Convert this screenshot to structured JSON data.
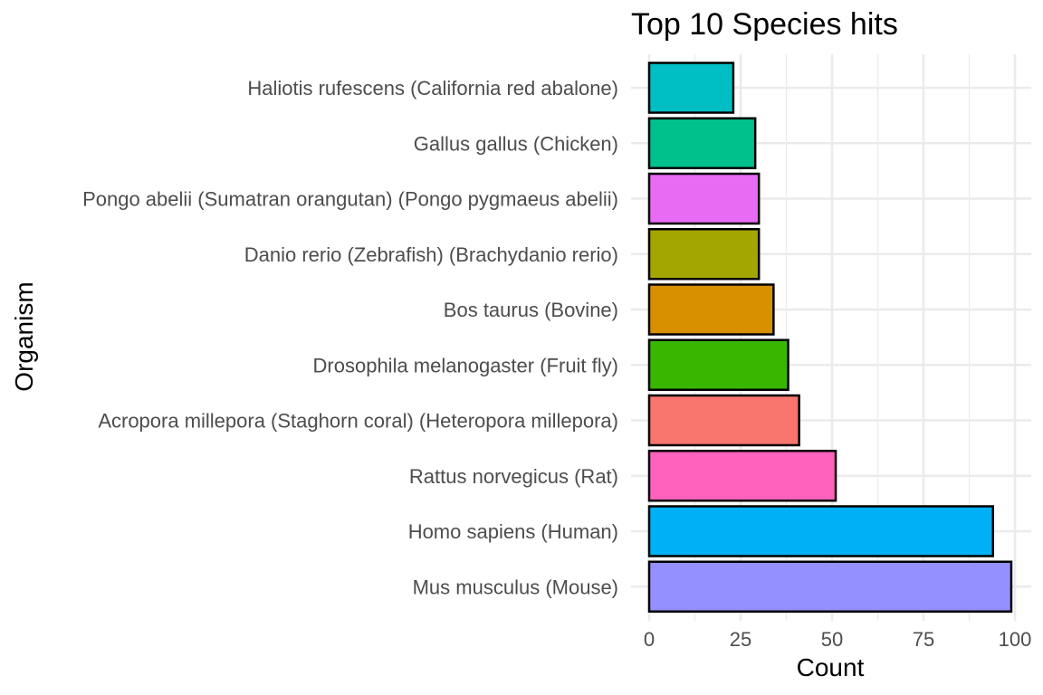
{
  "chart_data": {
    "type": "bar",
    "orientation": "horizontal",
    "title": "Top 10 Species hits",
    "xlabel": "Count",
    "ylabel": "Organism",
    "xlim": [
      0,
      105
    ],
    "x_ticks": [
      0,
      25,
      50,
      75,
      100
    ],
    "grid": true,
    "legend": "none",
    "categories": [
      "Haliotis rufescens (California red abalone)",
      "Gallus gallus (Chicken)",
      "Pongo abelii (Sumatran orangutan) (Pongo pygmaeus abelii)",
      "Danio rerio (Zebrafish) (Brachydanio rerio)",
      "Bos taurus (Bovine)",
      "Drosophila melanogaster (Fruit fly)",
      "Acropora millepora (Staghorn coral) (Heteropora millepora)",
      "Rattus norvegicus (Rat)",
      "Homo sapiens (Human)",
      "Mus musculus (Mouse)"
    ],
    "values": [
      23,
      29,
      30,
      30,
      34,
      38,
      41,
      51,
      94,
      99
    ],
    "colors": [
      "#00BFC4",
      "#00C08B",
      "#E76BF3",
      "#A3A500",
      "#D89000",
      "#39B600",
      "#F8766D",
      "#FF62BC",
      "#00B0F6",
      "#9590FF"
    ]
  }
}
